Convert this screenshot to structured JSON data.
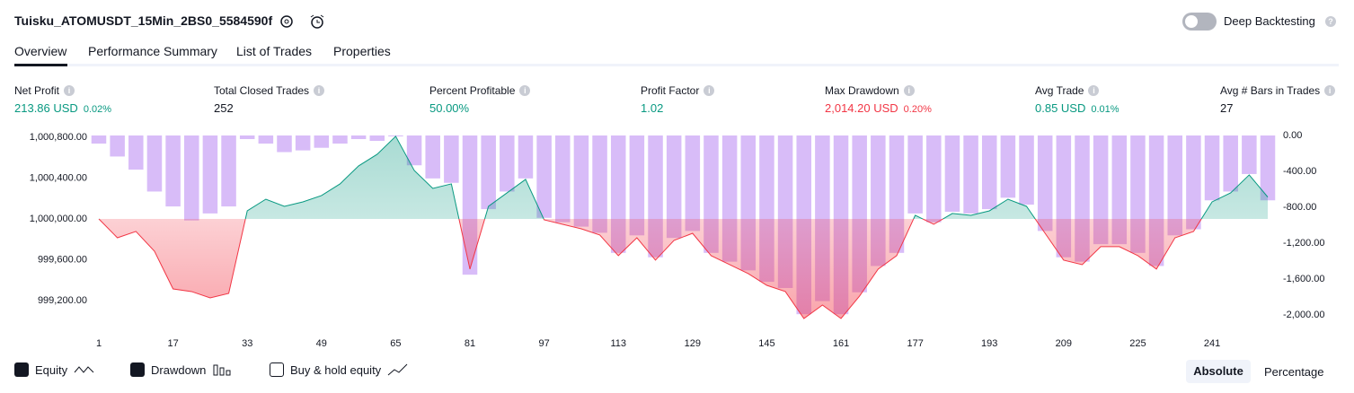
{
  "header": {
    "title": "Tuisku_ATOMUSDT_15Min_2BS0_5584590f",
    "toggle": "Deep Backtesting"
  },
  "tabs": [
    "Overview",
    "Performance Summary",
    "List of Trades",
    "Properties"
  ],
  "metrics": [
    {
      "label": "Net Profit",
      "value": "213.86 USD",
      "percent": "0.02%"
    },
    {
      "label": "Total Closed Trades",
      "value": "252"
    },
    {
      "label": "Percent Profitable",
      "value": "50.00%"
    },
    {
      "label": "Profit Factor",
      "value": "1.02"
    },
    {
      "label": "Max Drawdown",
      "value": "2,014.20 USD",
      "percent": "0.20%"
    },
    {
      "label": "Avg Trade",
      "value": "0.85 USD",
      "percent": "0.01%"
    },
    {
      "label": "Avg # Bars in Trades",
      "value": "27"
    }
  ],
  "chart_data": {
    "type": "line",
    "x": [
      1,
      5,
      9,
      13,
      17,
      21,
      25,
      29,
      33,
      37,
      41,
      45,
      49,
      53,
      57,
      61,
      65,
      69,
      73,
      77,
      81,
      85,
      89,
      93,
      97,
      101,
      105,
      109,
      113,
      117,
      121,
      125,
      129,
      133,
      137,
      141,
      145,
      149,
      153,
      157,
      161,
      165,
      169,
      173,
      177,
      181,
      185,
      189,
      193,
      197,
      201,
      205,
      209,
      213,
      217,
      221,
      225,
      229,
      233,
      237,
      241,
      245,
      249,
      253
    ],
    "series": [
      {
        "name": "Equity",
        "color": "#089981",
        "values": [
          1000000,
          999815,
          999877,
          999683,
          999314,
          999288,
          999226,
          999270,
          1000079,
          1000193,
          1000123,
          1000167,
          1000229,
          1000343,
          1000519,
          1000633,
          1000809,
          1000475,
          1000299,
          1000343,
          999508,
          1000123,
          1000255,
          1000387,
          999991,
          999947,
          999903,
          999842,
          999640,
          999815,
          999596,
          999789,
          999859,
          999640,
          999552,
          999464,
          999349,
          999288,
          999024,
          999156,
          999024,
          999244,
          999508,
          999640,
          1000035,
          999947,
          1000053,
          1000035,
          1000079,
          1000193,
          1000123,
          999859,
          999596,
          999552,
          999728,
          999728,
          999640,
          999508,
          999815,
          999877,
          1000167,
          1000255,
          1000431,
          1000214
        ]
      },
      {
        "name": "Drawdown",
        "type": "bar",
        "axis": "y2",
        "color": "#d1b0f7",
        "values": [
          -90,
          -234,
          -380,
          -624,
          -790,
          -946,
          -868,
          -790,
          -40,
          -90,
          -185,
          -166,
          -137,
          -90,
          -40,
          -60,
          -10,
          -332,
          -478,
          -527,
          -1550,
          -820,
          -624,
          -478,
          -917,
          -966,
          -1015,
          -1083,
          -1307,
          -1112,
          -1356,
          -1141,
          -1063,
          -1307,
          -1405,
          -1502,
          -1629,
          -1698,
          -1990,
          -1844,
          -1990,
          -1746,
          -1453,
          -1307,
          -868,
          -966,
          -849,
          -868,
          -820,
          -693,
          -770,
          -1063,
          -1356,
          -1405,
          -1210,
          -1210,
          -1307,
          -1453,
          -1112,
          -1044,
          -722,
          -624,
          -429,
          -722
        ]
      }
    ],
    "below_color": "#f23645",
    "xlim": [
      1,
      253
    ],
    "xticks": [
      1,
      17,
      33,
      49,
      65,
      81,
      97,
      113,
      129,
      145,
      161,
      177,
      193,
      209,
      225,
      241
    ],
    "ylim": [
      998980,
      1000826
    ],
    "yticks": [
      {
        "value": 999200,
        "label": "999,200.00"
      },
      {
        "value": 999600,
        "label": "999,600.00"
      },
      {
        "value": 1000000,
        "label": "1,000,000.00"
      },
      {
        "value": 1000400,
        "label": "1,000,400.00"
      },
      {
        "value": 1000800,
        "label": "1,000,800.00"
      }
    ],
    "y2lim": [
      -2088,
      10
    ],
    "y2ticks": [
      {
        "value": 0,
        "label": "0.00"
      },
      {
        "value": -400,
        "label": "-400.00"
      },
      {
        "value": -800,
        "label": "-800.00"
      },
      {
        "value": -1200,
        "label": "-1,200.00"
      },
      {
        "value": -1600,
        "label": "-1,600.00"
      },
      {
        "value": -2000,
        "label": "-2,000.00"
      }
    ]
  },
  "controls": {
    "extra": "Buy & hold equity",
    "modes": [
      "Absolute",
      "Percentage"
    ]
  }
}
